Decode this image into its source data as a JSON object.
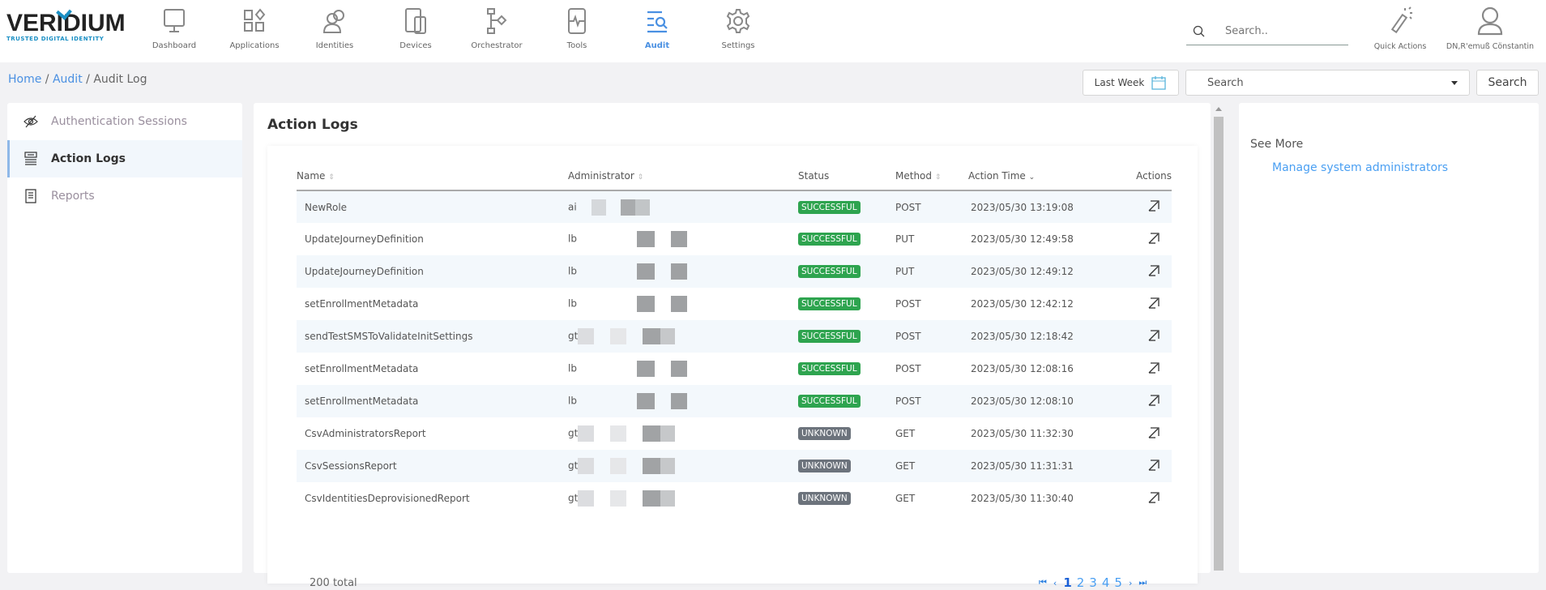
{
  "brand": {
    "name": "VERIDIUM",
    "tagline": "TRUSTED DIGITAL IDENTITY",
    "color": "#1a8fc4"
  },
  "nav": [
    {
      "label": "Dashboard",
      "icon": "monitor-icon"
    },
    {
      "label": "Applications",
      "icon": "apps-icon"
    },
    {
      "label": "Identities",
      "icon": "users-icon"
    },
    {
      "label": "Devices",
      "icon": "devices-icon"
    },
    {
      "label": "Orchestrator",
      "icon": "flow-icon"
    },
    {
      "label": "Tools",
      "icon": "tools-icon"
    },
    {
      "label": "Audit",
      "icon": "audit-icon",
      "active": true
    },
    {
      "label": "Settings",
      "icon": "gear-icon"
    }
  ],
  "global_search": {
    "placeholder": "Search.."
  },
  "quick_actions": {
    "label": "Quick Actions"
  },
  "user": {
    "name": "DN,R'emuß Cönstantin"
  },
  "breadcrumb": {
    "home": "Home",
    "audit": "Audit",
    "current": "Audit Log"
  },
  "filters": {
    "range_label": "Last Week",
    "select_value": "Search",
    "search_button": "Search"
  },
  "sidebar": {
    "items": [
      {
        "label": "Authentication Sessions",
        "icon": "eye-slash-icon"
      },
      {
        "label": "Action Logs",
        "icon": "log-list-icon",
        "active": true
      },
      {
        "label": "Reports",
        "icon": "report-icon"
      }
    ]
  },
  "main": {
    "title": "Action Logs",
    "columns": {
      "name": "Name",
      "administrator": "Administrator",
      "status": "Status",
      "method": "Method",
      "time": "Action Time",
      "actions": "Actions"
    },
    "rows": [
      {
        "name": "NewRole",
        "admin": "ai",
        "status": "SUCCESSFUL",
        "method": "POST",
        "time": "2023/05/30 13:19:08"
      },
      {
        "name": "UpdateJourneyDefinition",
        "admin": "lb",
        "status": "SUCCESSFUL",
        "method": "PUT",
        "time": "2023/05/30 12:49:58"
      },
      {
        "name": "UpdateJourneyDefinition",
        "admin": "lb",
        "status": "SUCCESSFUL",
        "method": "PUT",
        "time": "2023/05/30 12:49:12"
      },
      {
        "name": "setEnrollmentMetadata",
        "admin": "lb",
        "status": "SUCCESSFUL",
        "method": "POST",
        "time": "2023/05/30 12:42:12"
      },
      {
        "name": "sendTestSMSToValidateInitSettings",
        "admin": "gt",
        "status": "SUCCESSFUL",
        "method": "POST",
        "time": "2023/05/30 12:18:42"
      },
      {
        "name": "setEnrollmentMetadata",
        "admin": "lb",
        "status": "SUCCESSFUL",
        "method": "POST",
        "time": "2023/05/30 12:08:16"
      },
      {
        "name": "setEnrollmentMetadata",
        "admin": "lb",
        "status": "SUCCESSFUL",
        "method": "POST",
        "time": "2023/05/30 12:08:10"
      },
      {
        "name": "CsvAdministratorsReport",
        "admin": "gt",
        "status": "UNKNOWN",
        "method": "GET",
        "time": "2023/05/30 11:32:30"
      },
      {
        "name": "CsvSessionsReport",
        "admin": "gt",
        "status": "UNKNOWN",
        "method": "GET",
        "time": "2023/05/30 11:31:31"
      },
      {
        "name": "CsvIdentitiesDeprovisionedReport",
        "admin": "gt",
        "status": "UNKNOWN",
        "method": "GET",
        "time": "2023/05/30 11:30:40"
      }
    ],
    "total": "200 total",
    "pages": [
      "1",
      "2",
      "3",
      "4",
      "5"
    ],
    "current_page": "1"
  },
  "status_colors": {
    "SUCCESSFUL": "#2ea44f",
    "UNKNOWN": "#6c737c"
  },
  "right_panel": {
    "heading": "See More",
    "link": "Manage system administrators"
  }
}
